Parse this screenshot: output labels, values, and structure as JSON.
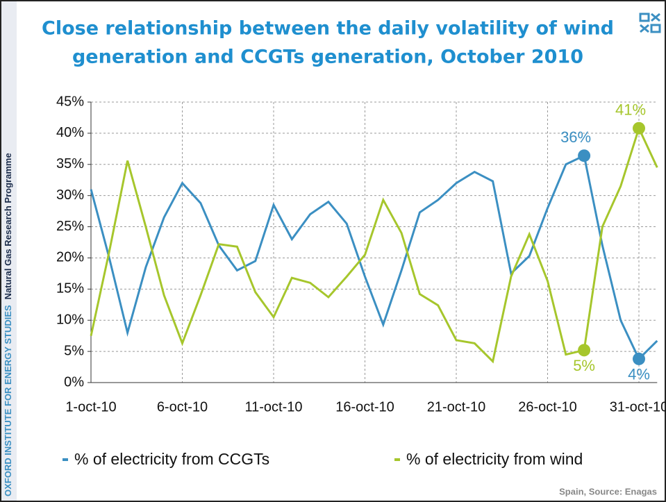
{
  "sidebar": {
    "institute": "OXFORD INSTITUTE FOR ENERGY STUDIES",
    "programme": "Natural Gas Research Programme"
  },
  "footer": "Spain, Source: Enagas",
  "chart_data": {
    "type": "line",
    "title": [
      "Close relationship between the daily volatility of wind",
      "generation and CCGTs generation, October 2010"
    ],
    "categories": [
      "1-oct-10",
      null,
      null,
      null,
      null,
      "6-oct-10",
      null,
      null,
      null,
      null,
      "11-oct-10",
      null,
      null,
      null,
      null,
      "16-oct-10",
      null,
      null,
      null,
      null,
      "21-oct-10",
      null,
      null,
      null,
      null,
      "26-oct-10",
      null,
      null,
      null,
      null,
      "31-oct-10",
      null
    ],
    "ylim": [
      0,
      45
    ],
    "yticks": [
      {
        "value": 0,
        "label": "0%"
      },
      {
        "value": 5,
        "label": "5%"
      },
      {
        "value": 10,
        "label": "10%"
      },
      {
        "value": 15,
        "label": "15%"
      },
      {
        "value": 20,
        "label": "20%"
      },
      {
        "value": 25,
        "label": "25%"
      },
      {
        "value": 30,
        "label": "30%"
      },
      {
        "value": 35,
        "label": "35%"
      },
      {
        "value": 40,
        "label": "40%"
      },
      {
        "value": 45,
        "label": "45%"
      }
    ],
    "grid": true,
    "series": [
      {
        "name": "% of electricity from CCGTs",
        "color": "#3b8fc2",
        "values": [
          31,
          20,
          8,
          18.5,
          26.5,
          32,
          28.8,
          22,
          18,
          19.5,
          28.5,
          23,
          27,
          29,
          25.5,
          17,
          9.3,
          18,
          27.3,
          29.3,
          32,
          33.8,
          32.3,
          17.5,
          20.3,
          28,
          35,
          36.4,
          22,
          10,
          3.8,
          6.7
        ],
        "value_labels": [
          null,
          null,
          null,
          null,
          null,
          null,
          null,
          null,
          null,
          null,
          null,
          null,
          null,
          null,
          null,
          null,
          null,
          null,
          null,
          null,
          null,
          null,
          null,
          null,
          null,
          null,
          null,
          "36%",
          null,
          null,
          "4%",
          null
        ]
      },
      {
        "name": "% of electricity from wind",
        "color": "#a6c62c",
        "values": [
          7.5,
          21,
          35.6,
          25,
          14,
          6.3,
          14,
          22.2,
          21.8,
          14.5,
          10.5,
          16.8,
          16,
          13.7,
          17,
          20.5,
          29.3,
          24,
          14.2,
          12.4,
          6.8,
          6.3,
          3.4,
          17,
          23.8,
          16.3,
          4.5,
          5.2,
          25,
          31.5,
          40.8,
          34.5
        ],
        "value_labels": [
          null,
          null,
          null,
          null,
          null,
          null,
          null,
          null,
          null,
          null,
          null,
          null,
          null,
          null,
          null,
          null,
          null,
          null,
          null,
          null,
          null,
          null,
          null,
          null,
          null,
          null,
          null,
          "5%",
          null,
          null,
          "41%",
          null
        ]
      }
    ]
  }
}
